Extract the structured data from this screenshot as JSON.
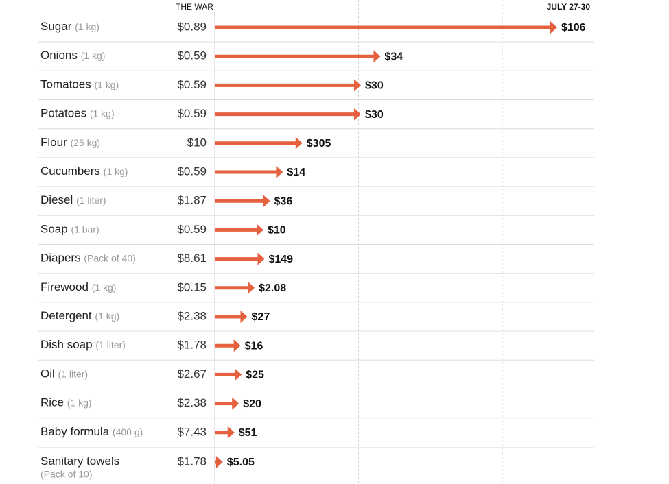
{
  "chart_data": {
    "type": "arrow",
    "headers": [
      "THE WAR",
      "JULY 27-30"
    ],
    "categories": [
      "Sugar",
      "Onions",
      "Tomatoes",
      "Potatoes",
      "Flour",
      "Cucumbers",
      "Diesel",
      "Soap",
      "Diapers",
      "Firewood",
      "Detergent",
      "Dish soap",
      "Oil",
      "Rice",
      "Baby formula",
      "Sanitary towels"
    ],
    "units": [
      "(1 kg)",
      "(1 kg)",
      "(1 kg)",
      "(1 kg)",
      "(25 kg)",
      "(1 kg)",
      "(1 liter)",
      "(1 bar)",
      "(Pack of 40)",
      "(1 kg)",
      "(1 kg)",
      "(1 liter)",
      "(1 liter)",
      "(1 kg)",
      "(400 g)",
      "(Pack of 10)"
    ],
    "series": [
      {
        "values": [
          0.89,
          0.59,
          0.59,
          0.59,
          10,
          0.59,
          1.87,
          0.59,
          8.61,
          0.15,
          2.38,
          1.78,
          2.67,
          2.38,
          7.43,
          1.78
        ],
        "value_labels": [
          "$0.89",
          "$0.59",
          "$0.59",
          "$0.59",
          "$10",
          "$0.59",
          "$1.87",
          "$0.59",
          "$8.61",
          "$0.15",
          "$2.38",
          "$1.78",
          "$2.67",
          "$2.38",
          "$7.43",
          "$1.78"
        ]
      },
      {
        "values": [
          106,
          34,
          30,
          30,
          305,
          14,
          36,
          10,
          149,
          2.08,
          27,
          16,
          25,
          20,
          51,
          5.05
        ],
        "value_labels": [
          "$106",
          "$34",
          "$30",
          "$30",
          "$305",
          "$14",
          "$36",
          "$10",
          "$149",
          "$2.08",
          "$27",
          "$16",
          "$25",
          "$20",
          "$51",
          "$5.05"
        ]
      }
    ],
    "color": "#e5603e",
    "xlim": [
      0,
      132
    ],
    "xticks": [
      0,
      50,
      100
    ],
    "grid": true
  }
}
